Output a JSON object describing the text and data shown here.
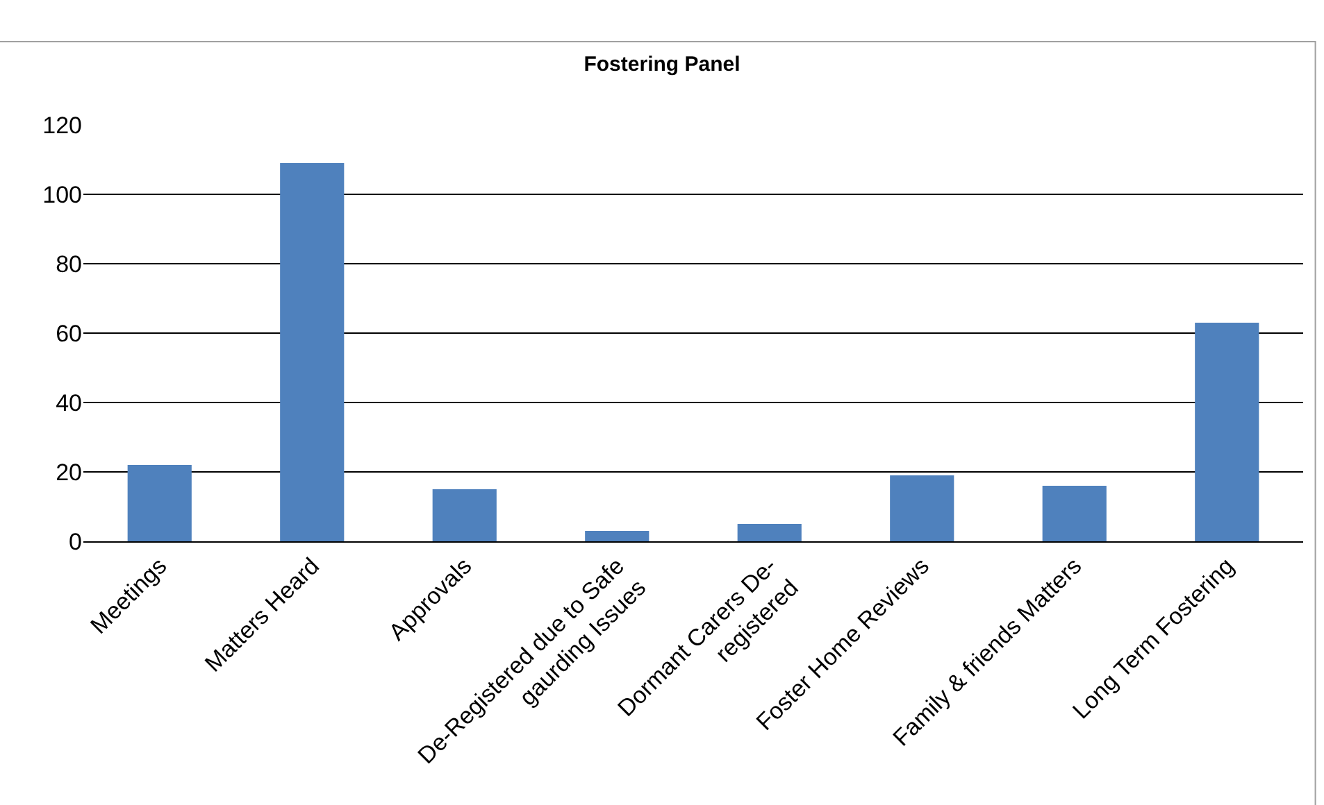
{
  "chart_data": {
    "type": "bar",
    "title": "Fostering Panel",
    "categories": [
      "Meetings",
      "Matters Heard",
      "Approvals",
      "De-Registered due to Safe\ngaurding Issues",
      "Dormant Carers De-\nregistered",
      "Foster Home Reviews",
      "Family & friends Matters",
      "Long Term Fostering"
    ],
    "values": [
      22,
      109,
      15,
      3,
      5,
      19,
      16,
      63
    ],
    "color": "#4f81bd",
    "ylim": [
      0,
      120
    ],
    "yticks": [
      0,
      20,
      40,
      60,
      80,
      100,
      120
    ],
    "grid": "y",
    "legend": false
  }
}
